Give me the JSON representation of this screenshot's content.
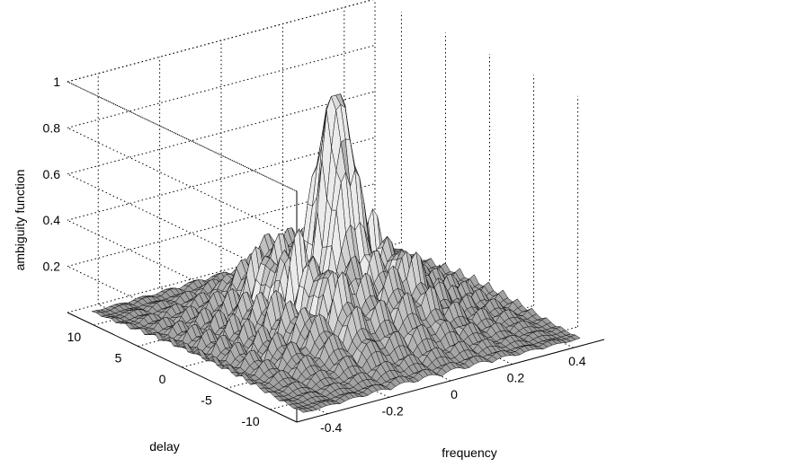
{
  "chart_data": {
    "type": "surface",
    "title": "",
    "xlabel": "frequency",
    "ylabel": "delay",
    "zlabel": "ambiguity function",
    "xlim": [
      -0.5,
      0.5
    ],
    "ylim": [
      -13,
      13
    ],
    "zlim": [
      0,
      1
    ],
    "xticks": [
      -0.4,
      -0.2,
      0,
      0.2,
      0.4
    ],
    "xtick_labels": [
      "-0.4",
      "-0.2",
      "0",
      "0.2",
      "0.4"
    ],
    "yticks": [
      -10,
      -5,
      0,
      5,
      10
    ],
    "ytick_labels": [
      "-10",
      "-5",
      "0",
      "5",
      "10"
    ],
    "zticks": [
      0.2,
      0.4,
      0.6,
      0.8,
      1
    ],
    "ztick_labels": [
      "0.2",
      "0.4",
      "0.6",
      "0.8",
      "1"
    ],
    "grid": true,
    "colormap": "gray",
    "peak": {
      "frequency": 0,
      "delay": 0,
      "value": 1
    }
  }
}
